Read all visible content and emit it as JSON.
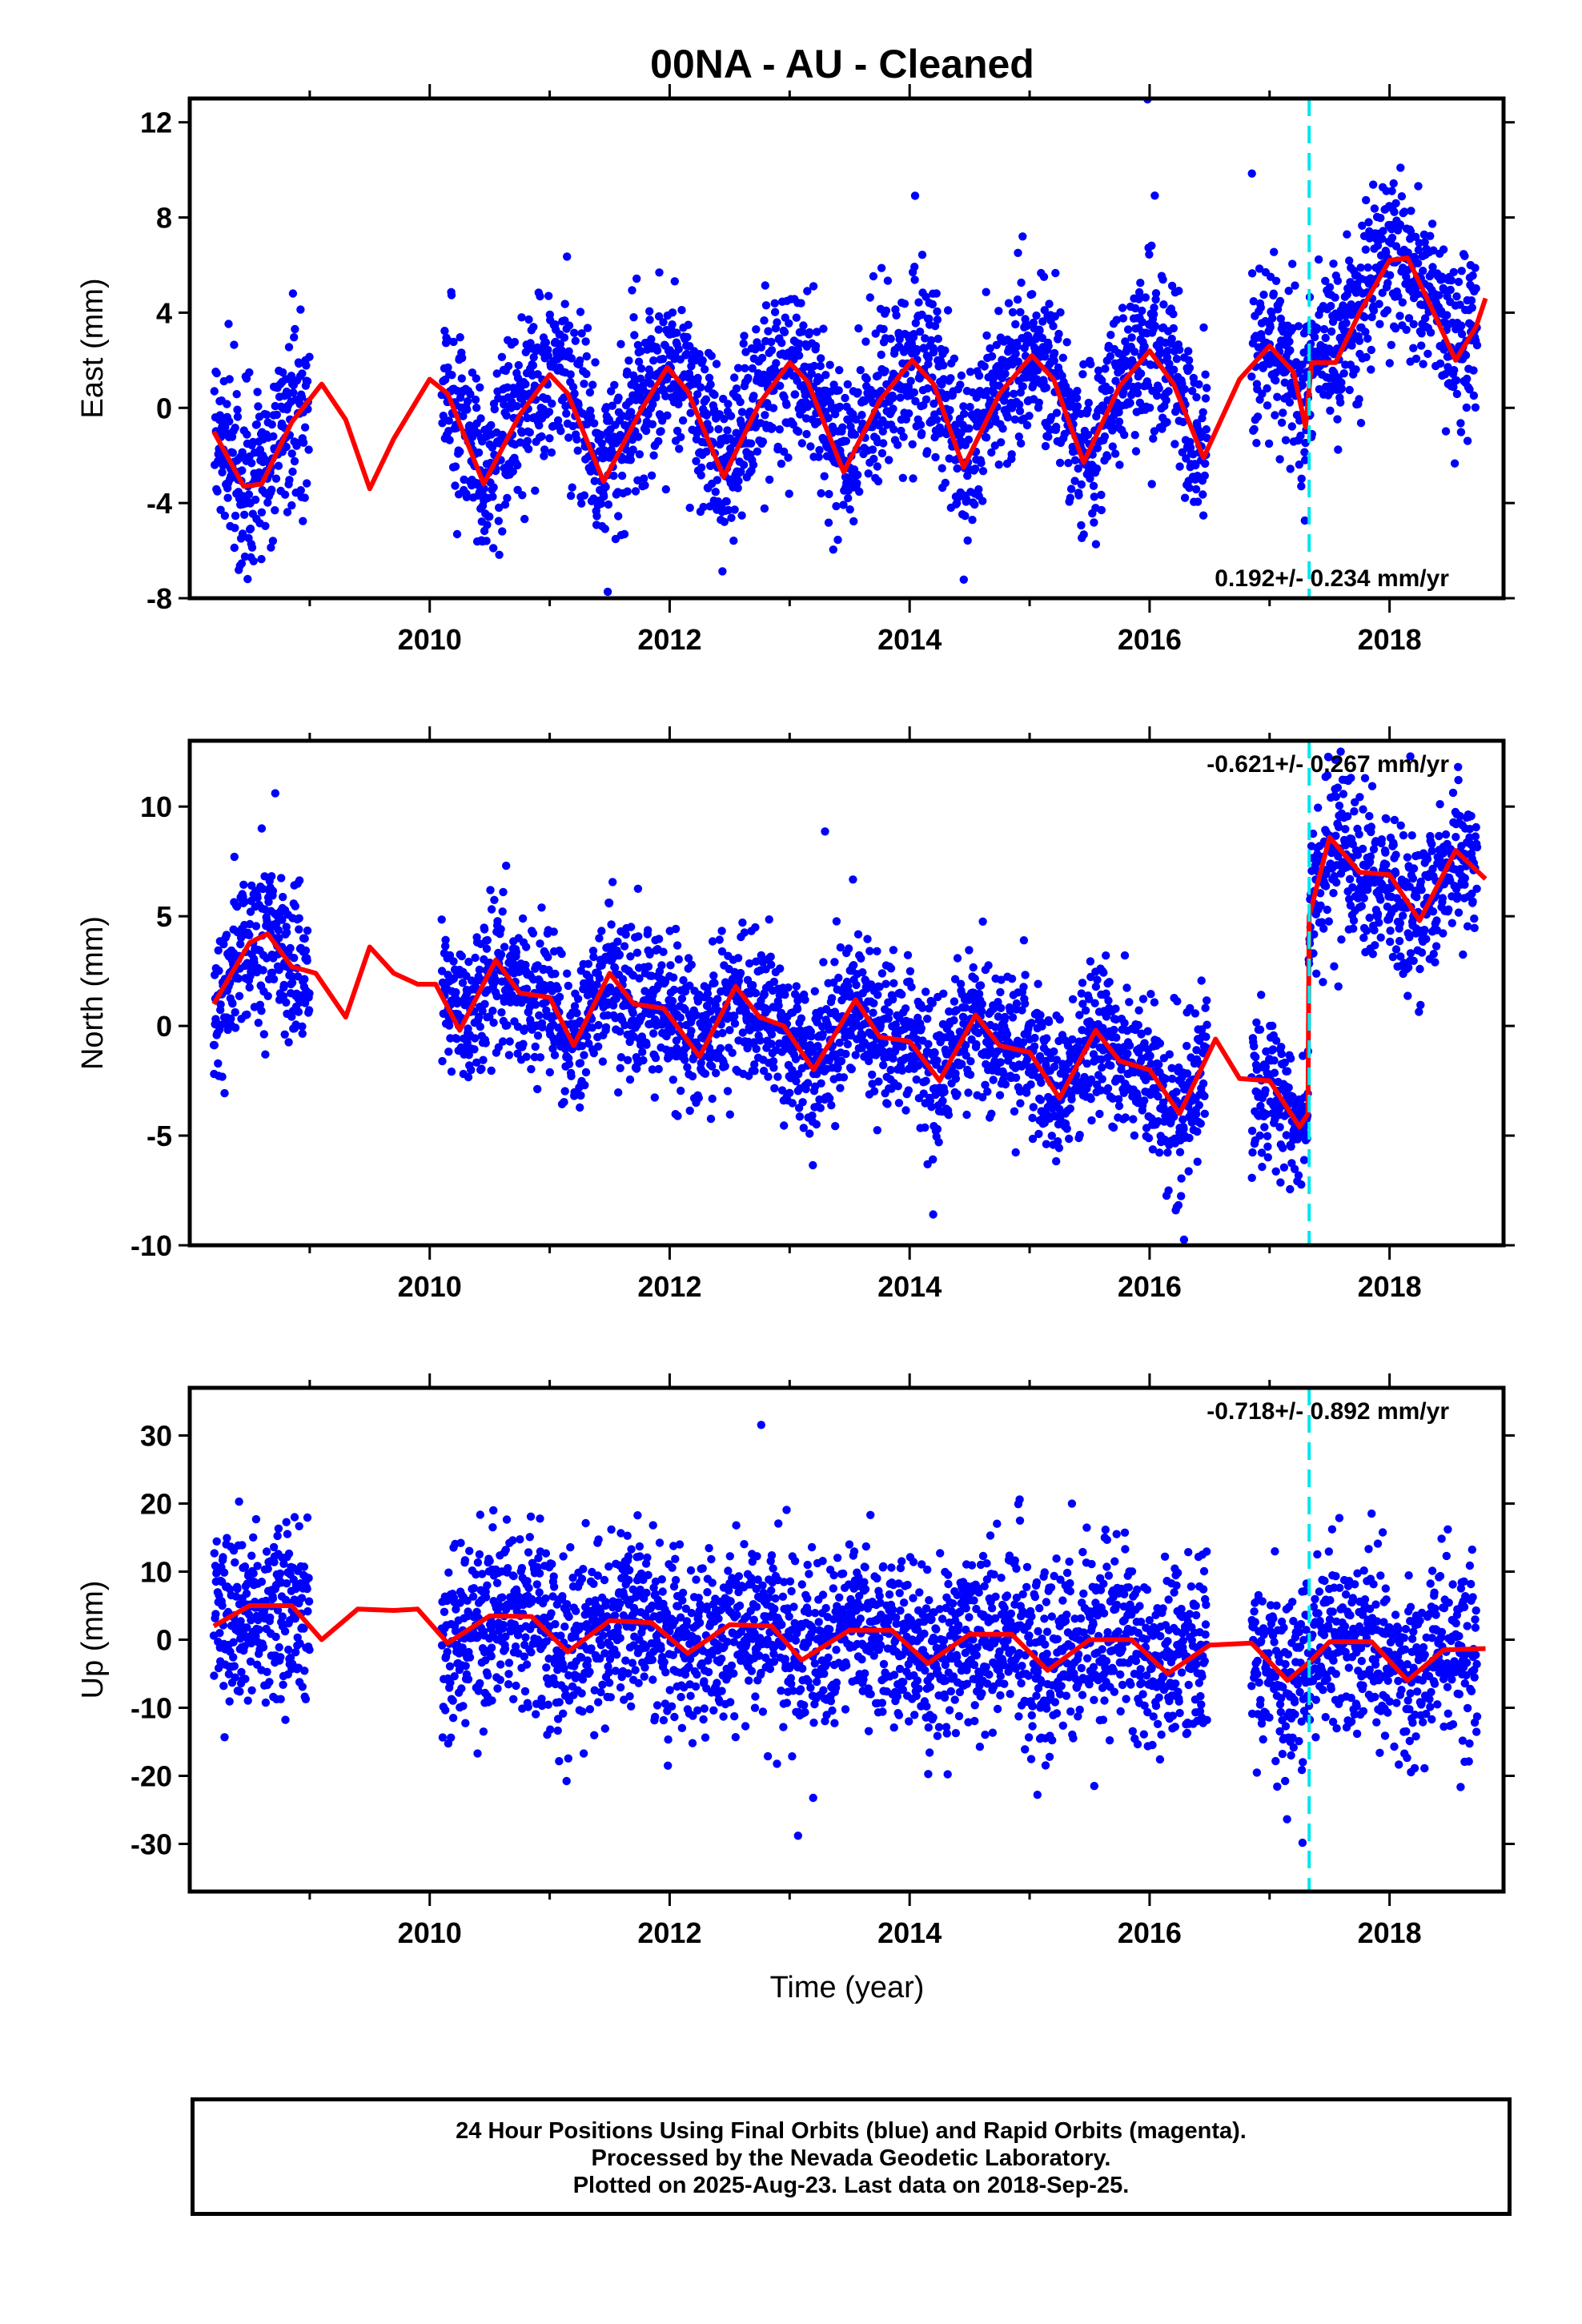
{
  "title": "00NA  - AU - Cleaned",
  "xlabel": "Time (year)",
  "caption": {
    "line1": "24 Hour Positions Using Final Orbits (blue) and Rapid Orbits (magenta).",
    "line2": "Processed by the Nevada Geodetic Laboratory.",
    "line3": "Plotted on 2025-Aug-23. Last data on 2018-Sep-25."
  },
  "colors": {
    "final_points": "#0000ff",
    "model": "#ff0000",
    "event": "#00e5ee",
    "frame": "#000000"
  },
  "chart_data": [
    {
      "type": "scatter",
      "panel": "east",
      "ylabel": "East (mm)",
      "rate_text": "0.192+/- 0.234 mm/yr",
      "xlim": [
        2008.0,
        2018.95
      ],
      "ylim": [
        -8,
        13
      ],
      "yticks": [
        -8,
        -4,
        0,
        4,
        8,
        12
      ],
      "xticks": [
        2010,
        2012,
        2014,
        2016,
        2018
      ],
      "event_line_x": 2017.33,
      "data_segments": [
        [
          2008.2,
          2009.0
        ],
        [
          2010.1,
          2016.48
        ],
        [
          2016.85,
          2018.73
        ]
      ],
      "model_curve": [
        [
          2008.2,
          -1
        ],
        [
          2008.45,
          -3.3
        ],
        [
          2008.6,
          -3.2
        ],
        [
          2008.85,
          -0.6
        ],
        [
          2009.1,
          1.0
        ],
        [
          2009.3,
          -0.5
        ],
        [
          2009.5,
          -3.4
        ],
        [
          2009.7,
          -1.3
        ],
        [
          2010.0,
          1.2
        ],
        [
          2010.15,
          0.6
        ],
        [
          2010.45,
          -3.2
        ],
        [
          2010.75,
          -0.3
        ],
        [
          2011.0,
          1.4
        ],
        [
          2011.15,
          0.6
        ],
        [
          2011.45,
          -3.1
        ],
        [
          2011.75,
          -0.2
        ],
        [
          2011.98,
          1.7
        ],
        [
          2012.15,
          0.7
        ],
        [
          2012.45,
          -2.9
        ],
        [
          2012.75,
          0.2
        ],
        [
          2013.0,
          1.9
        ],
        [
          2013.15,
          1.1
        ],
        [
          2013.45,
          -2.7
        ],
        [
          2013.75,
          0.3
        ],
        [
          2014.02,
          2.0
        ],
        [
          2014.2,
          1.0
        ],
        [
          2014.45,
          -2.5
        ],
        [
          2014.75,
          0.6
        ],
        [
          2015.02,
          2.2
        ],
        [
          2015.2,
          1.2
        ],
        [
          2015.45,
          -2.3
        ],
        [
          2015.75,
          0.9
        ],
        [
          2016.0,
          2.4
        ],
        [
          2016.2,
          1.0
        ],
        [
          2016.45,
          -2.1
        ],
        [
          2016.75,
          1.2
        ],
        [
          2017.0,
          2.6
        ],
        [
          2017.2,
          1.5
        ],
        [
          2017.3,
          -0.8
        ],
        [
          2017.35,
          1.9
        ],
        [
          2017.55,
          1.9
        ],
        [
          2017.75,
          4.0
        ],
        [
          2018.0,
          6.2
        ],
        [
          2018.15,
          6.3
        ],
        [
          2018.35,
          4.2
        ],
        [
          2018.55,
          2.0
        ],
        [
          2018.72,
          3.4
        ],
        [
          2018.8,
          4.6
        ]
      ],
      "noise_sd": 1.8,
      "model_shift": 0.3
    },
    {
      "type": "scatter",
      "panel": "north",
      "ylabel": "North (mm)",
      "rate_text": "-0.621+/- 0.267 mm/yr",
      "xlim": [
        2008.0,
        2018.95
      ],
      "ylim": [
        -10,
        13
      ],
      "yticks": [
        -10,
        -5,
        0,
        5,
        10
      ],
      "xticks": [
        2010,
        2012,
        2014,
        2016,
        2018
      ],
      "event_line_x": 2017.33,
      "data_segments": [
        [
          2008.2,
          2009.0
        ],
        [
          2010.1,
          2016.48
        ],
        [
          2016.85,
          2018.73
        ]
      ],
      "model_curve": [
        [
          2008.2,
          1
        ],
        [
          2008.5,
          3.8
        ],
        [
          2008.65,
          4.2
        ],
        [
          2008.85,
          2.7
        ],
        [
          2009.05,
          2.4
        ],
        [
          2009.3,
          0.4
        ],
        [
          2009.5,
          3.6
        ],
        [
          2009.7,
          2.4
        ],
        [
          2009.9,
          1.9
        ],
        [
          2010.05,
          1.9
        ],
        [
          2010.25,
          -0.2
        ],
        [
          2010.55,
          3.0
        ],
        [
          2010.75,
          1.5
        ],
        [
          2011.0,
          1.3
        ],
        [
          2011.2,
          -0.9
        ],
        [
          2011.5,
          2.4
        ],
        [
          2011.7,
          1.0
        ],
        [
          2011.95,
          0.8
        ],
        [
          2012.25,
          -1.4
        ],
        [
          2012.55,
          1.8
        ],
        [
          2012.75,
          0.4
        ],
        [
          2012.95,
          0.0
        ],
        [
          2013.2,
          -2.0
        ],
        [
          2013.55,
          1.2
        ],
        [
          2013.75,
          -0.5
        ],
        [
          2014.0,
          -0.7
        ],
        [
          2014.25,
          -2.5
        ],
        [
          2014.55,
          0.5
        ],
        [
          2014.75,
          -0.9
        ],
        [
          2015.0,
          -1.2
        ],
        [
          2015.25,
          -3.3
        ],
        [
          2015.55,
          -0.2
        ],
        [
          2015.75,
          -1.6
        ],
        [
          2016.0,
          -2.0
        ],
        [
          2016.25,
          -4.0
        ],
        [
          2016.55,
          -0.6
        ],
        [
          2016.75,
          -2.4
        ],
        [
          2017.0,
          -2.5
        ],
        [
          2017.25,
          -4.6
        ],
        [
          2017.32,
          -4.0
        ],
        [
          2017.33,
          5.0
        ],
        [
          2017.5,
          8.6
        ],
        [
          2017.75,
          7.0
        ],
        [
          2018.0,
          6.9
        ],
        [
          2018.25,
          4.8
        ],
        [
          2018.55,
          8.0
        ],
        [
          2018.8,
          6.7
        ]
      ],
      "noise_sd": 1.7,
      "model_shift": 0.0
    },
    {
      "type": "scatter",
      "panel": "up",
      "ylabel": "Up (mm)",
      "rate_text": "-0.718+/- 0.892 mm/yr",
      "xlim": [
        2008.0,
        2018.95
      ],
      "ylim": [
        -37,
        37
      ],
      "yticks": [
        -30,
        -20,
        -10,
        0,
        10,
        20,
        30
      ],
      "xticks": [
        2010,
        2012,
        2014,
        2016,
        2018
      ],
      "event_line_x": 2017.33,
      "data_segments": [
        [
          2008.2,
          2009.0
        ],
        [
          2010.1,
          2016.48
        ],
        [
          2016.85,
          2018.73
        ]
      ],
      "model_curve": [
        [
          2008.2,
          2
        ],
        [
          2008.5,
          5
        ],
        [
          2008.85,
          5
        ],
        [
          2009.1,
          0
        ],
        [
          2009.4,
          4.5
        ],
        [
          2009.7,
          4.3
        ],
        [
          2009.9,
          4.5
        ],
        [
          2010.15,
          -0.5
        ],
        [
          2010.5,
          3.5
        ],
        [
          2010.85,
          3.4
        ],
        [
          2011.15,
          -1.8
        ],
        [
          2011.5,
          2.8
        ],
        [
          2011.85,
          2.5
        ],
        [
          2012.15,
          -2
        ],
        [
          2012.5,
          2.2
        ],
        [
          2012.85,
          2.0
        ],
        [
          2013.1,
          -3
        ],
        [
          2013.5,
          1.4
        ],
        [
          2013.85,
          1.4
        ],
        [
          2014.15,
          -3.5
        ],
        [
          2014.5,
          0.8
        ],
        [
          2014.85,
          0.8
        ],
        [
          2015.15,
          -4.5
        ],
        [
          2015.5,
          0.0
        ],
        [
          2015.85,
          0.0
        ],
        [
          2016.15,
          -5
        ],
        [
          2016.5,
          -0.8
        ],
        [
          2016.85,
          -0.5
        ],
        [
          2017.15,
          -6
        ],
        [
          2017.35,
          -3
        ],
        [
          2017.5,
          -0.3
        ],
        [
          2017.85,
          -0.3
        ],
        [
          2018.15,
          -6
        ],
        [
          2018.45,
          -1.5
        ],
        [
          2018.8,
          -1.3
        ]
      ],
      "noise_sd": 6.5,
      "model_shift": 0.0
    }
  ]
}
